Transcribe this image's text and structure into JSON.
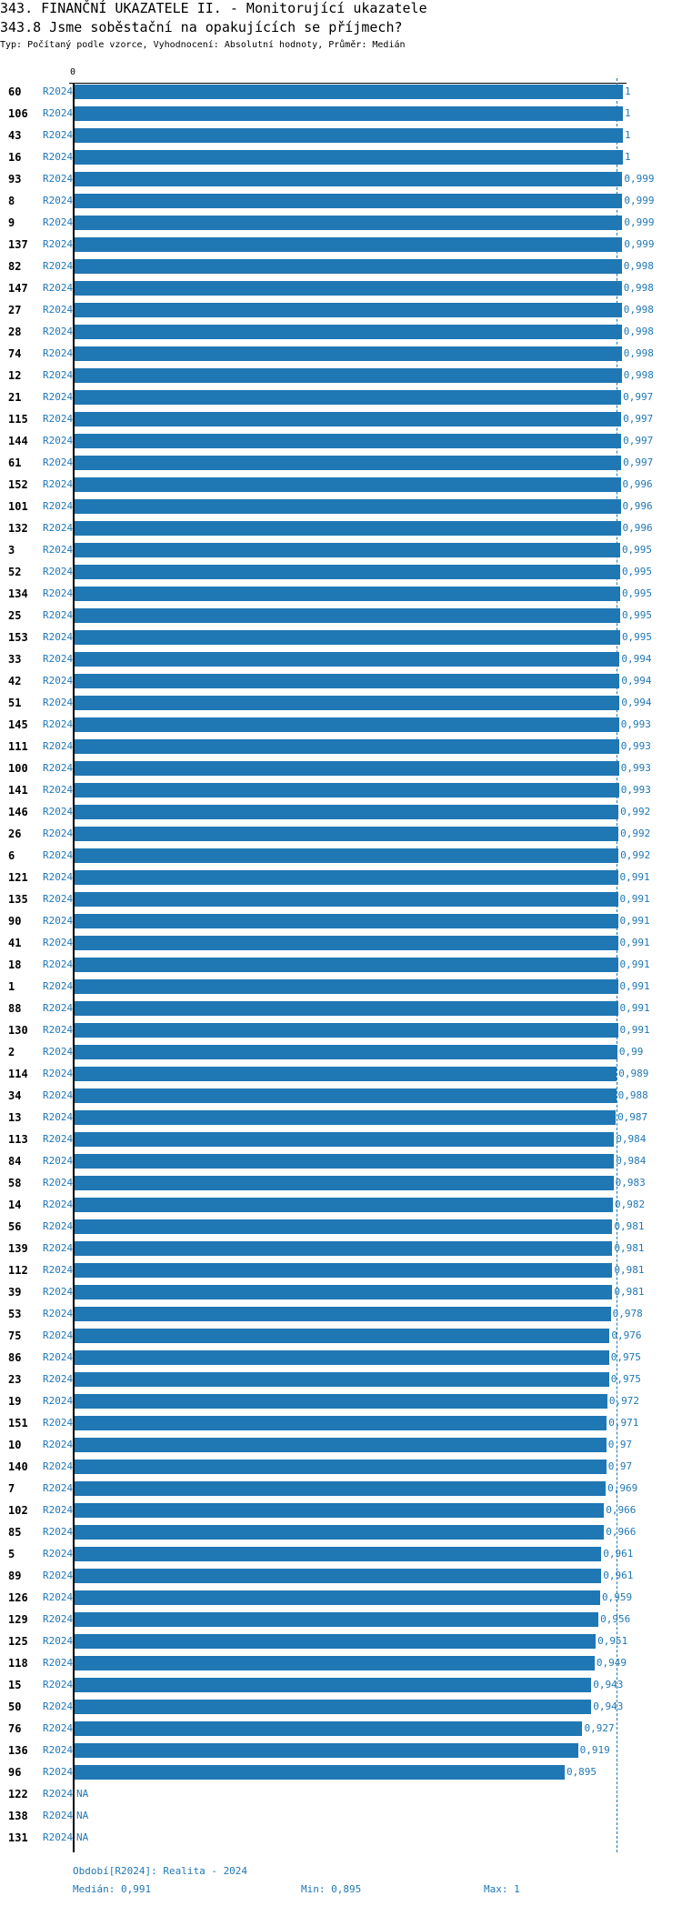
{
  "header": {
    "title": "343. FINANČNÍ UKAZATELE II. - Monitorující ukazatele",
    "subtitle": "343.8 Jsme soběstační na opakujících se příjmech?",
    "meta": "Typ: Počítaný podle vzorce, Vyhodnocení: Absolutní hodnoty, Průměr: Medián"
  },
  "footer": {
    "period": "Období[R2024]: Realita - 2024",
    "median": "Medián: 0,991",
    "min": "Min: 0,895",
    "max": "Max: 1"
  },
  "colors": {
    "bar": "#1f77b4",
    "text_accent": "#1f77b4"
  },
  "chart_data": {
    "type": "bar",
    "orientation": "horizontal",
    "axis_zero_label": "0",
    "xlim": [
      0,
      1
    ],
    "median": 0.991,
    "period": "R2024",
    "categories": [
      "60",
      "106",
      "43",
      "16",
      "93",
      "8",
      "9",
      "137",
      "82",
      "147",
      "27",
      "28",
      "74",
      "12",
      "21",
      "115",
      "144",
      "61",
      "152",
      "101",
      "132",
      "3",
      "52",
      "134",
      "25",
      "153",
      "33",
      "42",
      "51",
      "145",
      "111",
      "100",
      "141",
      "146",
      "26",
      "6",
      "121",
      "135",
      "90",
      "41",
      "18",
      "1",
      "88",
      "130",
      "2",
      "114",
      "34",
      "13",
      "113",
      "84",
      "58",
      "14",
      "56",
      "139",
      "112",
      "39",
      "53",
      "75",
      "86",
      "23",
      "19",
      "151",
      "10",
      "140",
      "7",
      "102",
      "85",
      "5",
      "89",
      "126",
      "129",
      "125",
      "118",
      "15",
      "50",
      "76",
      "136",
      "96",
      "122",
      "138",
      "131"
    ],
    "values": [
      1,
      1,
      1,
      1,
      0.999,
      0.999,
      0.999,
      0.999,
      0.998,
      0.998,
      0.998,
      0.998,
      0.998,
      0.998,
      0.997,
      0.997,
      0.997,
      0.997,
      0.996,
      0.996,
      0.996,
      0.995,
      0.995,
      0.995,
      0.995,
      0.995,
      0.994,
      0.994,
      0.994,
      0.993,
      0.993,
      0.993,
      0.993,
      0.992,
      0.992,
      0.992,
      0.991,
      0.991,
      0.991,
      0.991,
      0.991,
      0.991,
      0.991,
      0.991,
      0.99,
      0.989,
      0.988,
      0.987,
      0.984,
      0.984,
      0.983,
      0.982,
      0.981,
      0.981,
      0.981,
      0.981,
      0.978,
      0.976,
      0.975,
      0.975,
      0.972,
      0.971,
      0.97,
      0.97,
      0.969,
      0.966,
      0.966,
      0.961,
      0.961,
      0.959,
      0.956,
      0.951,
      0.949,
      0.943,
      0.943,
      0.927,
      0.919,
      0.895,
      null,
      null,
      null
    ],
    "na_label": "NA"
  }
}
